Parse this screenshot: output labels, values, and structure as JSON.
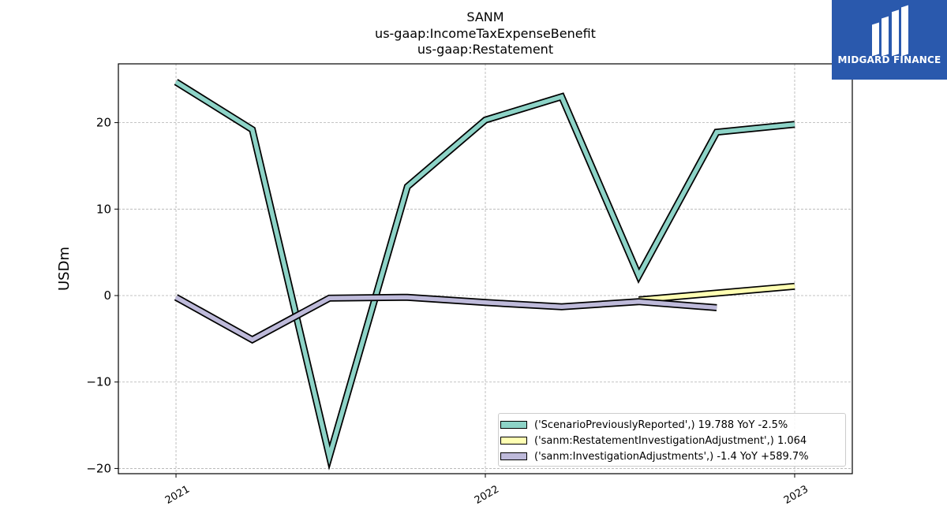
{
  "chart_data": {
    "type": "line",
    "title_lines": [
      "SANM",
      "us-gaap:IncomeTaxExpenseBenefit",
      "us-gaap:Restatement"
    ],
    "ylabel": "USDm",
    "ylim": [
      -20.6,
      26.8
    ],
    "xlim": [
      "2020-10-25",
      "2023-03-10"
    ],
    "yticks": [
      -20,
      -10,
      0,
      10,
      20
    ],
    "xticks": [
      {
        "date": "2021-01-01",
        "label": "2021"
      },
      {
        "date": "2022-01-01",
        "label": "2022"
      },
      {
        "date": "2023-01-01",
        "label": "2023"
      }
    ],
    "grid": true,
    "legend_position": "lower-right",
    "series": [
      {
        "name": "('ScenarioPreviouslyReported',) 19.788 YoY -2.5%",
        "color": "#8dd3c7",
        "points": [
          {
            "x": "2021-01-01",
            "y": 24.7
          },
          {
            "x": "2021-04-01",
            "y": 19.2
          },
          {
            "x": "2021-07-01",
            "y": -18.6
          },
          {
            "x": "2021-10-01",
            "y": 12.6
          },
          {
            "x": "2022-01-01",
            "y": 20.3
          },
          {
            "x": "2022-04-01",
            "y": 23.0
          },
          {
            "x": "2022-07-01",
            "y": 2.3
          },
          {
            "x": "2022-10-01",
            "y": 18.9
          },
          {
            "x": "2023-01-01",
            "y": 19.8
          }
        ]
      },
      {
        "name": "('sanm:RestatementInvestigationAdjustment',) 1.064",
        "color": "#ffffb3",
        "points": [
          {
            "x": "2022-07-01",
            "y": -0.5
          },
          {
            "x": "2023-01-01",
            "y": 1.064
          }
        ]
      },
      {
        "name": "('sanm:InvestigationAdjustments',) -1.4 YoY +589.7%",
        "color": "#bebada",
        "points": [
          {
            "x": "2021-01-01",
            "y": -0.2
          },
          {
            "x": "2021-04-01",
            "y": -5.1
          },
          {
            "x": "2021-07-01",
            "y": -0.3
          },
          {
            "x": "2021-10-01",
            "y": -0.2
          },
          {
            "x": "2022-01-01",
            "y": -0.8
          },
          {
            "x": "2022-04-01",
            "y": -1.3
          },
          {
            "x": "2022-07-01",
            "y": -0.7
          },
          {
            "x": "2022-10-01",
            "y": -1.4
          }
        ]
      }
    ]
  },
  "logo": {
    "text": "MIDGARD FINANCE",
    "background": "#2a59ad",
    "icon": "midgard-logo-icon"
  }
}
